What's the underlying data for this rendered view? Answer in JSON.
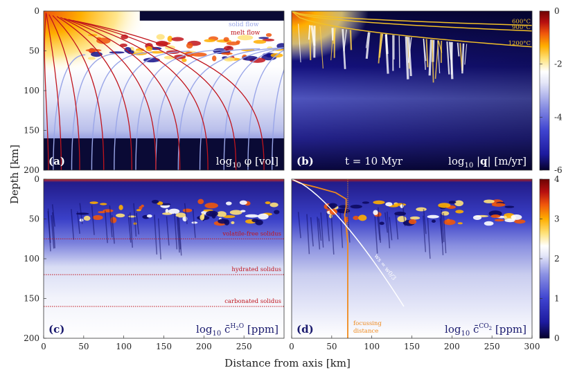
{
  "chart_data": {
    "type": "heatmap",
    "shared_axes": {
      "xlabel": "Distance from axis [km]",
      "ylabel": "Depth [km]",
      "xlim": [
        0,
        300
      ],
      "ylim": [
        200,
        0
      ],
      "xticks": [
        "0",
        "50",
        "100",
        "150",
        "200",
        "250",
        "300"
      ],
      "xticks_left": [
        "0",
        "50",
        "100",
        "150",
        "200",
        "250"
      ],
      "yticks": [
        "0",
        "50",
        "100",
        "150",
        "200"
      ]
    },
    "colorbars": [
      {
        "name": "top",
        "range": [
          -6,
          0
        ],
        "ticks": [
          "0",
          "-2",
          "-4",
          "-6"
        ],
        "colors": [
          "#05012b",
          "#1d1a9e",
          "#5a60d8",
          "#d7dbf5",
          "#ffffff",
          "#ffe27a",
          "#ffae00",
          "#f0560c",
          "#b80f0f",
          "#6d0303"
        ]
      },
      {
        "name": "bottom",
        "range": [
          0,
          4
        ],
        "ticks": [
          "4",
          "3",
          "2",
          "1",
          "0"
        ],
        "colors": [
          "#05012b",
          "#1d1a9e",
          "#5a60d8",
          "#d7dbf5",
          "#ffffff",
          "#ffe27a",
          "#ffae00",
          "#f0560c",
          "#b80f0f",
          "#6d0303"
        ]
      }
    ],
    "panels": [
      {
        "id": "a",
        "label": "(a)",
        "field": "log10 φ [vol]",
        "legend": [
          "solid flow",
          "melt flow"
        ],
        "solid_flow_color": "#9aa6e8",
        "melt_flow_color": "#c0141c",
        "lithosphere_base_depth_km": 160
      },
      {
        "id": "b",
        "label": "(b)",
        "field": "log10 |q| [m/yr]",
        "time": "t = 10 Myr",
        "isotherms": [
          {
            "label": "600°C",
            "depth_at_300km": 18
          },
          {
            "label": "900°C",
            "depth_at_300km": 25
          },
          {
            "label": "1200°C",
            "depth_at_300km": 45
          }
        ],
        "isotherm_color": "#f2c028"
      },
      {
        "id": "c",
        "label": "(c)",
        "field": "log10 c̄ H2O [ppm]",
        "solidi": [
          {
            "label": "volatile-free solidus",
            "depth_km": 75
          },
          {
            "label": "hydrated solidus",
            "depth_km": 120
          },
          {
            "label": "carbonated solidus",
            "depth_km": 160
          }
        ],
        "solidus_color": "#c0141c"
      },
      {
        "id": "d",
        "label": "(d)",
        "field": "log10 c̄ CO2 [ppm]",
        "focussing_distance_km": 70,
        "focussing_label": [
          "focussing",
          "distance"
        ],
        "focussing_color": "#f08a1c",
        "curve_label": "ws = w0/3",
        "curve_color": "#ffffff"
      }
    ]
  }
}
